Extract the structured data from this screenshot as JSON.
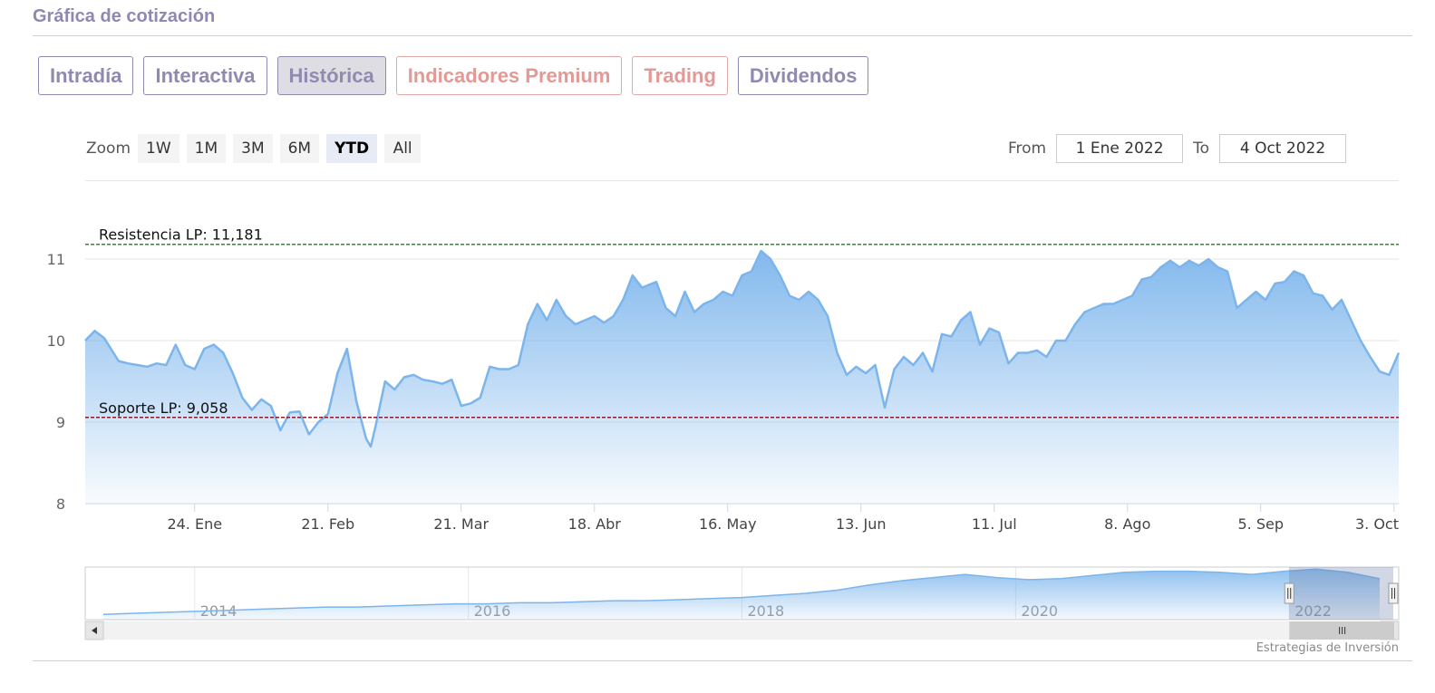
{
  "header": {
    "title": "Gráfica de cotización"
  },
  "tabs": [
    {
      "label": "Intradía",
      "active": false,
      "style": "normal"
    },
    {
      "label": "Interactiva",
      "active": false,
      "style": "normal"
    },
    {
      "label": "Histórica",
      "active": true,
      "style": "normal"
    },
    {
      "label": "Indicadores Premium",
      "active": false,
      "style": "premium"
    },
    {
      "label": "Trading",
      "active": false,
      "style": "premium"
    },
    {
      "label": "Dividendos",
      "active": false,
      "style": "normal"
    }
  ],
  "zoom": {
    "label": "Zoom",
    "buttons": [
      "1W",
      "1M",
      "3M",
      "6M",
      "YTD",
      "All"
    ],
    "active": "YTD"
  },
  "range": {
    "from_label": "From",
    "from_value": "1 Ene 2022",
    "to_label": "To",
    "to_value": "4 Oct 2022"
  },
  "credit": "Estrategias de Inversión",
  "colors": {
    "line": "#7cb5ec",
    "resistance": "#2e8b2e",
    "support": "#8b1a2b",
    "accent": "#8e88b2",
    "premium": "#e39995"
  },
  "chart_data": {
    "type": "area",
    "xlabel": "",
    "ylabel": "",
    "ylim": [
      8,
      11.2
    ],
    "yticks": [
      8,
      9,
      10,
      11
    ],
    "grid": true,
    "x_range": [
      "2022-01-01",
      "2022-10-04"
    ],
    "x_ticks": [
      {
        "date": "2022-01-24",
        "label": "24. Ene"
      },
      {
        "date": "2022-02-21",
        "label": "21. Feb"
      },
      {
        "date": "2022-03-21",
        "label": "21. Mar"
      },
      {
        "date": "2022-04-18",
        "label": "18. Abr"
      },
      {
        "date": "2022-05-16",
        "label": "16. May"
      },
      {
        "date": "2022-06-13",
        "label": "13. Jun"
      },
      {
        "date": "2022-07-11",
        "label": "11. Jul"
      },
      {
        "date": "2022-08-08",
        "label": "8. Ago"
      },
      {
        "date": "2022-09-05",
        "label": "5. Sep"
      },
      {
        "date": "2022-10-03",
        "label": "3. Oct"
      }
    ],
    "reference_lines": [
      {
        "label": "Resistencia LP: 11,181",
        "value": 11.181,
        "color": "#2e8b2e"
      },
      {
        "label": "Soporte LP: 9,058",
        "value": 9.058,
        "color": "#8b1a2b"
      }
    ],
    "series": [
      {
        "x": [
          "2022-01-01",
          "2022-01-03",
          "2022-01-05",
          "2022-01-08",
          "2022-01-10",
          "2022-01-12",
          "2022-01-14",
          "2022-01-16",
          "2022-01-18",
          "2022-01-20",
          "2022-01-22",
          "2022-01-24",
          "2022-01-26",
          "2022-01-28",
          "2022-01-30",
          "2022-02-01",
          "2022-02-03",
          "2022-02-05",
          "2022-02-07",
          "2022-02-09",
          "2022-02-11",
          "2022-02-13",
          "2022-02-15",
          "2022-02-17",
          "2022-02-19",
          "2022-02-21",
          "2022-02-23",
          "2022-02-25",
          "2022-02-27",
          "2022-03-01",
          "2022-03-02",
          "2022-03-03",
          "2022-03-05",
          "2022-03-07",
          "2022-03-09",
          "2022-03-11",
          "2022-03-13",
          "2022-03-15",
          "2022-03-17",
          "2022-03-19",
          "2022-03-21",
          "2022-03-23",
          "2022-03-25",
          "2022-03-27",
          "2022-03-29",
          "2022-03-31",
          "2022-04-02",
          "2022-04-04",
          "2022-04-06",
          "2022-04-08",
          "2022-04-10",
          "2022-04-12",
          "2022-04-14",
          "2022-04-16",
          "2022-04-18",
          "2022-04-20",
          "2022-04-22",
          "2022-04-24",
          "2022-04-26",
          "2022-04-28",
          "2022-05-01",
          "2022-05-03",
          "2022-05-05",
          "2022-05-07",
          "2022-05-09",
          "2022-05-11",
          "2022-05-13",
          "2022-05-15",
          "2022-05-17",
          "2022-05-19",
          "2022-05-21",
          "2022-05-23",
          "2022-05-25",
          "2022-05-27",
          "2022-05-29",
          "2022-05-31",
          "2022-06-02",
          "2022-06-04",
          "2022-06-06",
          "2022-06-08",
          "2022-06-10",
          "2022-06-12",
          "2022-06-14",
          "2022-06-16",
          "2022-06-18",
          "2022-06-20",
          "2022-06-22",
          "2022-06-24",
          "2022-06-26",
          "2022-06-28",
          "2022-06-30",
          "2022-07-02",
          "2022-07-04",
          "2022-07-06",
          "2022-07-08",
          "2022-07-10",
          "2022-07-12",
          "2022-07-14",
          "2022-07-16",
          "2022-07-18",
          "2022-07-20",
          "2022-07-22",
          "2022-07-24",
          "2022-07-26",
          "2022-07-28",
          "2022-07-30",
          "2022-08-01",
          "2022-08-03",
          "2022-08-05",
          "2022-08-07",
          "2022-08-09",
          "2022-08-11",
          "2022-08-13",
          "2022-08-15",
          "2022-08-17",
          "2022-08-19",
          "2022-08-21",
          "2022-08-23",
          "2022-08-25",
          "2022-08-27",
          "2022-08-29",
          "2022-08-31",
          "2022-09-02",
          "2022-09-04",
          "2022-09-06",
          "2022-09-08",
          "2022-09-10",
          "2022-09-12",
          "2022-09-14",
          "2022-09-16",
          "2022-09-18",
          "2022-09-20",
          "2022-09-22",
          "2022-09-24",
          "2022-09-26",
          "2022-09-28",
          "2022-09-30",
          "2022-10-02",
          "2022-10-04"
        ],
        "y": [
          10.0,
          10.12,
          10.03,
          9.75,
          9.72,
          9.7,
          9.68,
          9.72,
          9.7,
          9.95,
          9.7,
          9.65,
          9.9,
          9.95,
          9.85,
          9.6,
          9.3,
          9.15,
          9.28,
          9.2,
          8.9,
          9.12,
          9.13,
          8.85,
          9.0,
          9.1,
          9.6,
          9.9,
          9.25,
          8.8,
          8.7,
          8.95,
          9.5,
          9.4,
          9.55,
          9.58,
          9.52,
          9.5,
          9.47,
          9.52,
          9.2,
          9.23,
          9.3,
          9.68,
          9.65,
          9.65,
          9.7,
          10.2,
          10.45,
          10.25,
          10.5,
          10.3,
          10.2,
          10.25,
          10.3,
          10.22,
          10.3,
          10.5,
          10.8,
          10.65,
          10.72,
          10.4,
          10.3,
          10.6,
          10.35,
          10.45,
          10.5,
          10.6,
          10.55,
          10.8,
          10.85,
          11.1,
          11.0,
          10.8,
          10.55,
          10.5,
          10.6,
          10.5,
          10.3,
          9.85,
          9.58,
          9.68,
          9.6,
          9.7,
          9.18,
          9.65,
          9.8,
          9.7,
          9.85,
          9.62,
          10.08,
          10.05,
          10.25,
          10.35,
          9.95,
          10.15,
          10.1,
          9.72,
          9.85,
          9.85,
          9.88,
          9.8,
          10.0,
          10.0,
          10.2,
          10.35,
          10.4,
          10.45,
          10.45,
          10.5,
          10.55,
          10.75,
          10.78,
          10.9,
          10.98,
          10.9,
          10.98,
          10.92,
          11.0,
          10.9,
          10.85,
          10.4,
          10.5,
          10.6,
          10.5,
          10.7,
          10.72,
          10.85,
          10.8,
          10.58,
          10.55,
          10.38,
          10.5,
          10.25,
          10.0,
          9.8,
          9.62,
          9.58,
          9.85
        ]
      }
    ],
    "navigator": {
      "x_ticks": [
        {
          "year": 2014,
          "label": "2014"
        },
        {
          "year": 2016,
          "label": "2016"
        },
        {
          "year": 2018,
          "label": "2018"
        },
        {
          "year": 2020,
          "label": "2020"
        },
        {
          "year": 2022,
          "label": "2022"
        }
      ],
      "x_range": [
        2013.2,
        2022.8
      ],
      "selected": [
        2022.0,
        2022.76
      ],
      "y": [
        6.5,
        6.6,
        6.7,
        6.8,
        6.9,
        7.0,
        7.1,
        7.2,
        7.2,
        7.3,
        7.4,
        7.5,
        7.5,
        7.6,
        7.6,
        7.7,
        7.8,
        7.8,
        7.9,
        8.0,
        8.1,
        8.3,
        8.5,
        8.8,
        9.3,
        9.7,
        10.0,
        10.3,
        10.0,
        9.8,
        9.9,
        10.2,
        10.5,
        10.6,
        10.6,
        10.5,
        10.3,
        10.6,
        10.8,
        10.5,
        9.9
      ]
    }
  }
}
